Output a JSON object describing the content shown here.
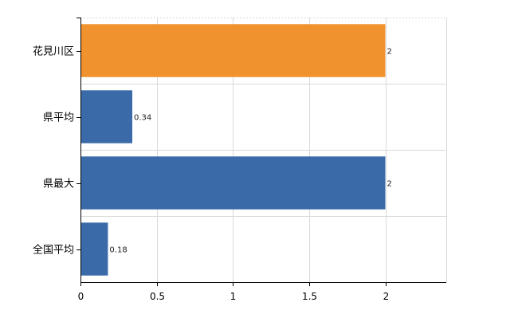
{
  "chart_data": {
    "type": "bar",
    "orientation": "horizontal",
    "categories": [
      "花見川区",
      "県平均",
      "県最大",
      "全国平均"
    ],
    "values": [
      2,
      0.34,
      2,
      0.18
    ],
    "data_labels": [
      "2",
      "0.34",
      "2",
      "0.18"
    ],
    "bar_colors": [
      "#f0922e",
      "#3a6ba8",
      "#3a6ba8",
      "#3a6ba8"
    ],
    "xlim": [
      0,
      2.4
    ],
    "x_ticks": [
      0,
      0.5,
      1,
      1.5,
      2
    ],
    "x_tick_labels": [
      "0",
      "0.5",
      "1",
      "1.5",
      "2"
    ],
    "grid": true,
    "title": "",
    "xlabel": "",
    "ylabel": ""
  }
}
